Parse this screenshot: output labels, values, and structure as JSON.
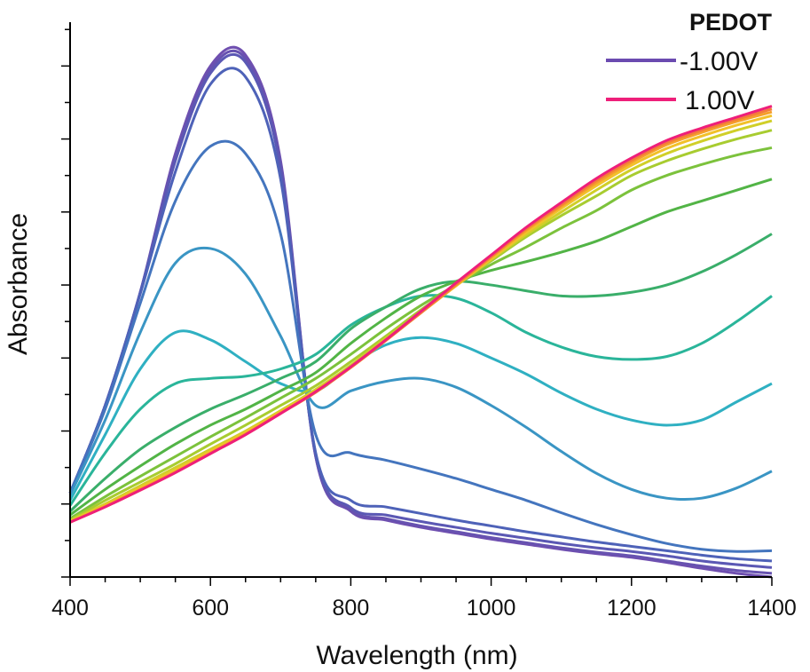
{
  "chart_data": {
    "type": "line",
    "xlabel": "Wavelength (nm)",
    "ylabel": "Absorbance",
    "xlim": [
      400,
      1400
    ],
    "ylim": [
      0,
      7.6
    ],
    "x_ticks": [
      "400",
      "600",
      "800",
      "1000",
      "1200",
      "1400"
    ],
    "y_tick_labels_shown": false,
    "grid": false,
    "legend": {
      "title": "PEDOT",
      "position": "top-right",
      "entries": [
        {
          "label": "-1.00V",
          "color": "#6b4bb0"
        },
        {
          "label": "1.00V",
          "color": "#ee1f7a"
        }
      ]
    },
    "x": [
      400,
      450,
      500,
      550,
      600,
      650,
      700,
      750,
      800,
      850,
      900,
      950,
      1000,
      1050,
      1100,
      1150,
      1200,
      1250,
      1300,
      1350,
      1400
    ],
    "series": [
      {
        "color": "#6f4fb0",
        "values": [
          1.15,
          2.35,
          3.9,
          5.8,
          7.0,
          7.15,
          5.7,
          1.65,
          0.9,
          0.78,
          0.68,
          0.6,
          0.52,
          0.45,
          0.38,
          0.32,
          0.27,
          0.2,
          0.12,
          0.05,
          0.0
        ]
      },
      {
        "color": "#6752b0",
        "values": [
          1.15,
          2.35,
          3.9,
          5.75,
          6.95,
          7.1,
          5.65,
          1.65,
          0.92,
          0.8,
          0.7,
          0.62,
          0.54,
          0.47,
          0.4,
          0.34,
          0.29,
          0.22,
          0.15,
          0.09,
          0.05
        ]
      },
      {
        "color": "#5b58b4",
        "values": [
          1.15,
          2.35,
          3.9,
          5.7,
          6.9,
          7.05,
          5.6,
          1.68,
          0.95,
          0.85,
          0.76,
          0.68,
          0.6,
          0.53,
          0.46,
          0.4,
          0.35,
          0.29,
          0.22,
          0.17,
          0.13
        ]
      },
      {
        "color": "#4e62b8",
        "values": [
          1.15,
          2.35,
          3.88,
          5.55,
          6.75,
          6.85,
          5.45,
          1.7,
          1.05,
          0.96,
          0.87,
          0.78,
          0.7,
          0.62,
          0.55,
          0.48,
          0.42,
          0.36,
          0.3,
          0.25,
          0.22
        ]
      },
      {
        "color": "#4475be",
        "values": [
          1.15,
          2.3,
          3.75,
          5.15,
          5.9,
          5.8,
          4.7,
          1.95,
          1.7,
          1.6,
          1.48,
          1.35,
          1.2,
          1.05,
          0.88,
          0.72,
          0.58,
          0.46,
          0.38,
          0.35,
          0.36
        ]
      },
      {
        "color": "#3a95c4",
        "values": [
          1.12,
          2.15,
          3.35,
          4.3,
          4.5,
          4.15,
          3.3,
          2.35,
          2.55,
          2.68,
          2.72,
          2.6,
          2.35,
          2.05,
          1.72,
          1.42,
          1.2,
          1.08,
          1.08,
          1.22,
          1.45
        ]
      },
      {
        "color": "#2fb0c2",
        "values": [
          1.05,
          1.95,
          2.85,
          3.35,
          3.25,
          2.95,
          2.65,
          2.55,
          2.9,
          3.18,
          3.28,
          3.2,
          3.0,
          2.78,
          2.52,
          2.3,
          2.15,
          2.08,
          2.15,
          2.4,
          2.65
        ]
      },
      {
        "color": "#2ab59a",
        "values": [
          0.98,
          1.7,
          2.3,
          2.65,
          2.72,
          2.75,
          2.85,
          3.05,
          3.45,
          3.7,
          3.85,
          3.82,
          3.62,
          3.35,
          3.15,
          3.02,
          2.98,
          3.02,
          3.2,
          3.5,
          3.85
        ]
      },
      {
        "color": "#3aae6a",
        "values": [
          0.9,
          1.35,
          1.75,
          2.05,
          2.3,
          2.5,
          2.72,
          2.95,
          3.4,
          3.7,
          3.95,
          4.05,
          4.0,
          3.92,
          3.85,
          3.85,
          3.9,
          4.0,
          4.18,
          4.42,
          4.7
        ]
      },
      {
        "color": "#52b446",
        "values": [
          0.85,
          1.2,
          1.52,
          1.82,
          2.08,
          2.3,
          2.55,
          2.8,
          3.2,
          3.55,
          3.85,
          4.05,
          4.2,
          4.32,
          4.45,
          4.6,
          4.8,
          5.0,
          5.15,
          5.3,
          5.45
        ]
      },
      {
        "color": "#7cc23c",
        "values": [
          0.8,
          1.1,
          1.38,
          1.65,
          1.92,
          2.18,
          2.45,
          2.72,
          3.05,
          3.4,
          3.72,
          4.0,
          4.28,
          4.52,
          4.78,
          5.02,
          5.3,
          5.5,
          5.65,
          5.78,
          5.88
        ]
      },
      {
        "color": "#a8cc30",
        "values": [
          0.78,
          1.05,
          1.3,
          1.55,
          1.82,
          2.08,
          2.35,
          2.62,
          2.95,
          3.3,
          3.66,
          4.0,
          4.33,
          4.66,
          4.95,
          5.22,
          5.5,
          5.7,
          5.86,
          6.0,
          6.12
        ]
      },
      {
        "color": "#d0cf28",
        "values": [
          0.77,
          1.0,
          1.25,
          1.5,
          1.75,
          2.0,
          2.28,
          2.57,
          2.9,
          3.27,
          3.63,
          3.99,
          4.35,
          4.69,
          5.0,
          5.3,
          5.58,
          5.8,
          5.97,
          6.12,
          6.25
        ]
      },
      {
        "color": "#f2c12a",
        "values": [
          0.76,
          0.98,
          1.22,
          1.46,
          1.72,
          1.98,
          2.26,
          2.55,
          2.88,
          3.25,
          3.62,
          3.99,
          4.36,
          4.72,
          5.05,
          5.36,
          5.64,
          5.87,
          6.04,
          6.19,
          6.32
        ]
      },
      {
        "color": "#f5a02a",
        "values": [
          0.75,
          0.97,
          1.2,
          1.44,
          1.7,
          1.96,
          2.25,
          2.54,
          2.87,
          3.24,
          3.62,
          4.0,
          4.38,
          4.75,
          5.08,
          5.4,
          5.68,
          5.92,
          6.09,
          6.24,
          6.37
        ]
      },
      {
        "color": "#f37c3a",
        "values": [
          0.75,
          0.96,
          1.19,
          1.43,
          1.69,
          1.95,
          2.24,
          2.53,
          2.87,
          3.24,
          3.62,
          4.01,
          4.39,
          4.77,
          5.1,
          5.43,
          5.71,
          5.95,
          6.12,
          6.27,
          6.41
        ]
      },
      {
        "color": "#ee1f7a",
        "values": [
          0.75,
          0.96,
          1.19,
          1.43,
          1.69,
          1.95,
          2.24,
          2.54,
          2.88,
          3.25,
          3.64,
          4.03,
          4.41,
          4.79,
          5.13,
          5.46,
          5.74,
          5.98,
          6.15,
          6.3,
          6.45
        ]
      }
    ]
  }
}
